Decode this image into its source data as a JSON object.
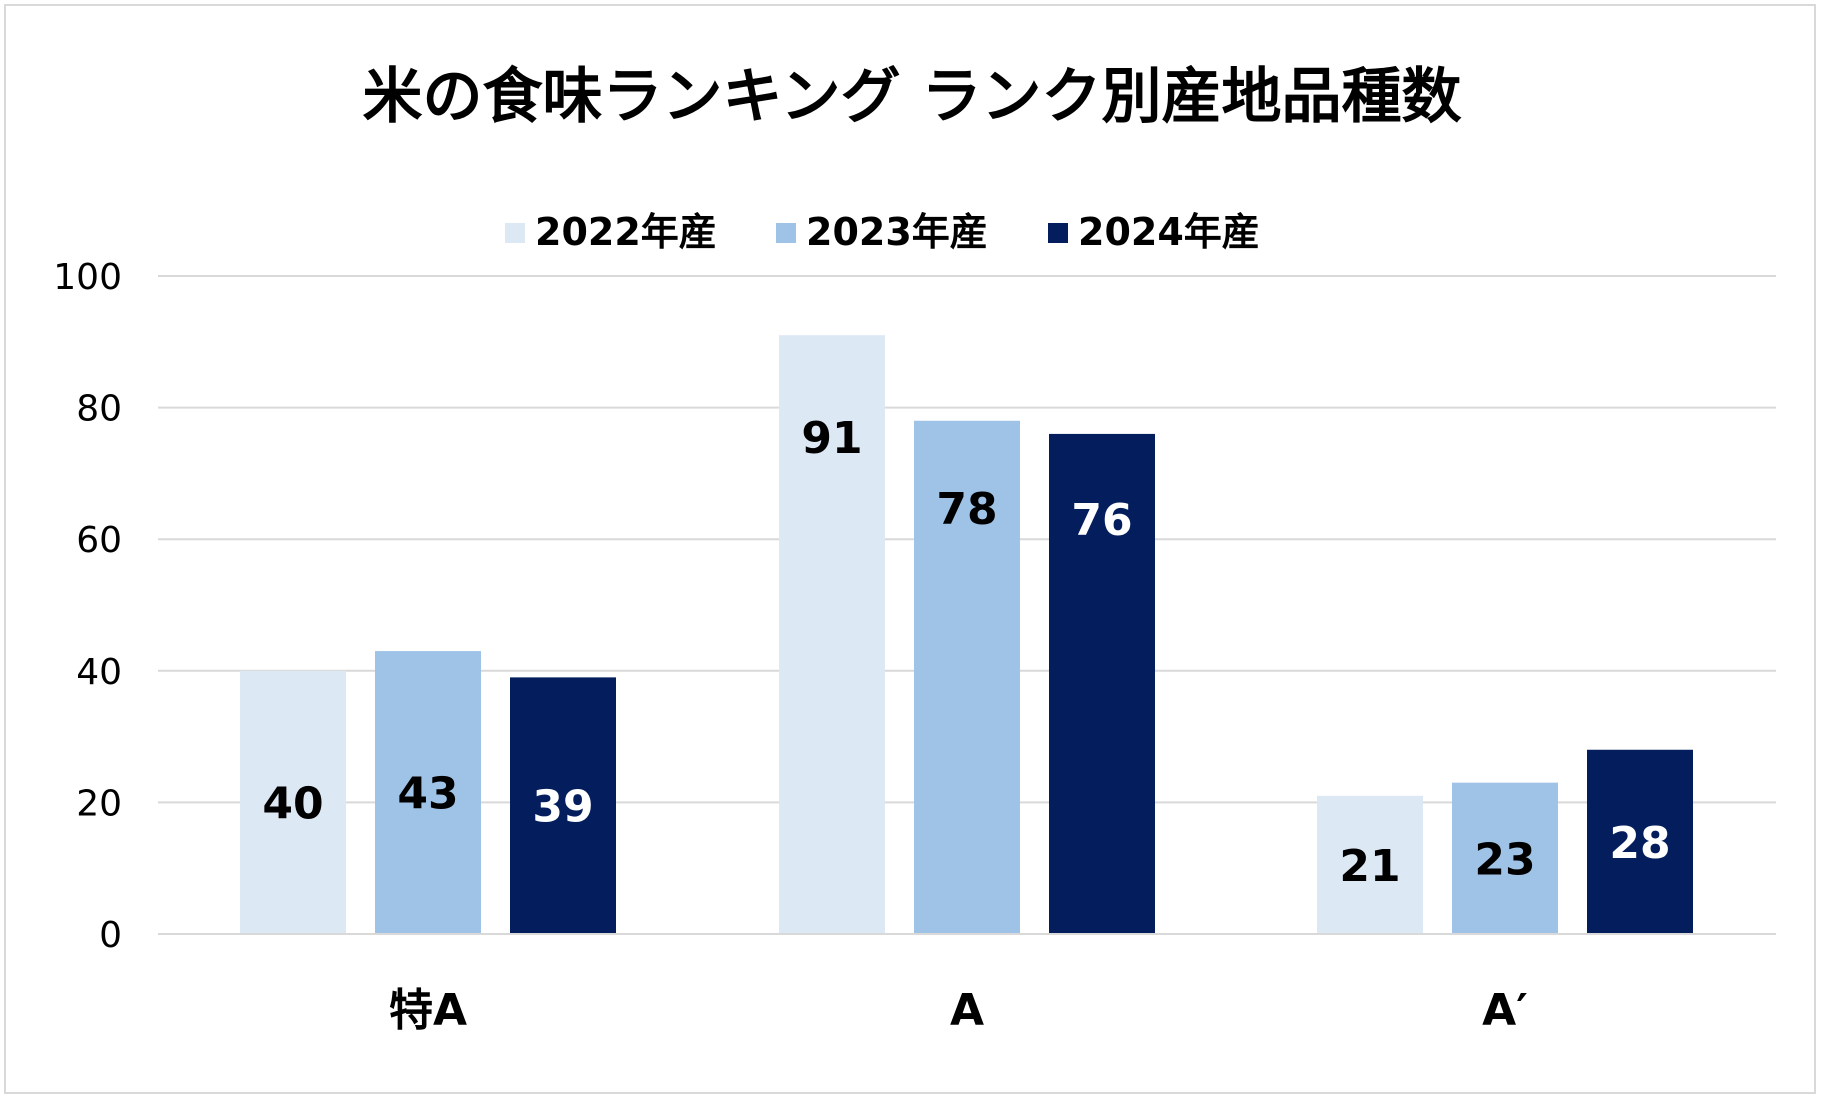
{
  "chart_data": {
    "type": "bar",
    "title": "米の食味ランキング ランク別産地品種数",
    "xlabel": "",
    "ylabel": "",
    "categories": [
      "特A",
      "A",
      "A′"
    ],
    "series": [
      {
        "name": "2022年産",
        "values": [
          40,
          91,
          21
        ],
        "color": "#dde8f5",
        "label_color": "#000000"
      },
      {
        "name": "2023年産",
        "values": [
          43,
          78,
          23
        ],
        "color": "#9fc3e7",
        "label_color": "#000000"
      },
      {
        "name": "2024年産",
        "values": [
          39,
          76,
          28
        ],
        "color": "#041e5d",
        "label_color": "#ffffff"
      }
    ],
    "ylim": [
      0,
      100
    ],
    "yticks": [
      "0",
      "20",
      "40",
      "60",
      "80",
      "100"
    ],
    "grid": true,
    "gridline_color": "#d9d9d9",
    "legend_position": "top-center"
  }
}
